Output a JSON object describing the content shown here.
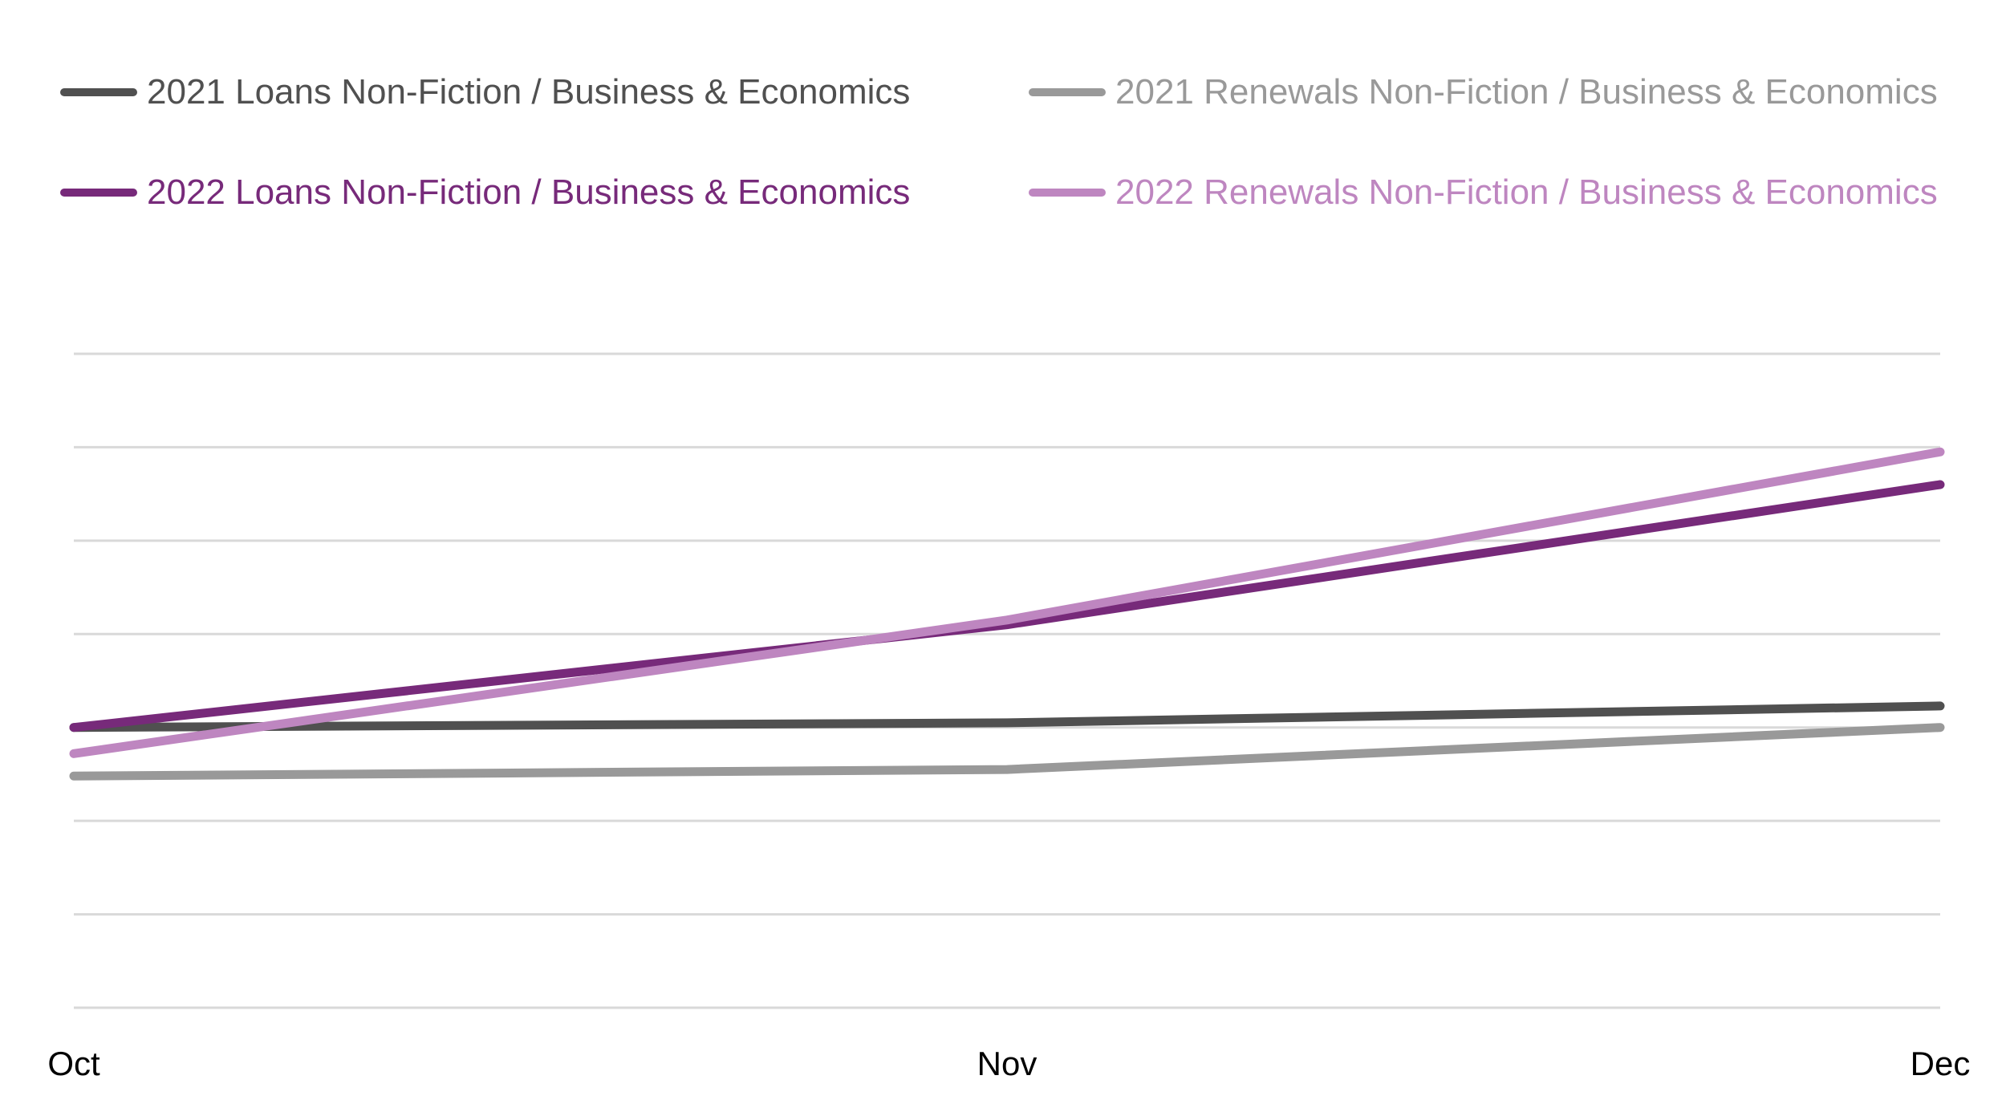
{
  "chart_data": {
    "type": "line",
    "categories": [
      "Oct",
      "Nov",
      "Dec"
    ],
    "ylim": [
      0,
      7
    ],
    "grid": true,
    "y_tick_labels_shown": false,
    "legend_placement": "top",
    "series": [
      {
        "name": "2021 Loans Non-Fiction / Business & Economics",
        "values": [
          3.0,
          3.05,
          3.23
        ],
        "color": "#505050"
      },
      {
        "name": "2021 Renewals Non-Fiction / Business & Economics",
        "values": [
          2.48,
          2.55,
          3.0
        ],
        "color": "#999999"
      },
      {
        "name": "2022 Loans Non-Fiction / Business & Economics",
        "values": [
          3.0,
          4.1,
          5.6
        ],
        "color": "#772A7A"
      },
      {
        "name": "2022 Renewals Non-Fiction / Business & Economics",
        "values": [
          2.72,
          4.15,
          5.95
        ],
        "color": "#BE86C0"
      }
    ],
    "gridline_color": "#D9D9D9"
  }
}
